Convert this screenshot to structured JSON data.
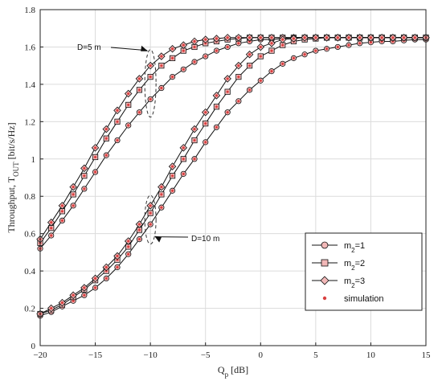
{
  "chart_data": {
    "type": "line",
    "xlabel_main": "Q",
    "xlabel_sub": "p",
    "xlabel_tail": " [dB]",
    "ylabel_main": "Throughput, T",
    "ylabel_sub": "OUT",
    "ylabel_tail": " [bit/s/Hz]",
    "xlim": [
      -20,
      15
    ],
    "ylim": [
      0,
      1.8
    ],
    "xticks": [
      -20,
      -15,
      -10,
      -5,
      0,
      5,
      10,
      15
    ],
    "yticks": [
      0,
      0.2,
      0.4,
      0.6,
      0.8,
      1,
      1.2,
      1.4,
      1.6,
      1.8
    ],
    "grid": true,
    "legend_position": "bottom-right",
    "annotations": [
      {
        "text": "D=5 m"
      },
      {
        "text": "D=10 m"
      }
    ],
    "legend": [
      {
        "label_main": "m",
        "label_sub": "2",
        "label_tail": "=1",
        "marker": "circle"
      },
      {
        "label_main": "m",
        "label_sub": "2",
        "label_tail": "=2",
        "marker": "square"
      },
      {
        "label_main": "m",
        "label_sub": "2",
        "label_tail": "=3",
        "marker": "diamond"
      },
      {
        "label_main": "simulation",
        "label_sub": "",
        "label_tail": "",
        "marker": "dot"
      }
    ],
    "x": [
      -20,
      -19,
      -18,
      -17,
      -16,
      -15,
      -14,
      -13,
      -12,
      -11,
      -10,
      -9,
      -8,
      -7,
      -6,
      -5,
      -4,
      -3,
      -2,
      -1,
      0,
      1,
      2,
      3,
      4,
      5,
      6,
      7,
      8,
      9,
      10,
      11,
      12,
      13,
      14,
      15
    ],
    "series": [
      {
        "group": "D=5 m",
        "marker": "circle",
        "values": [
          0.52,
          0.59,
          0.67,
          0.75,
          0.84,
          0.93,
          1.02,
          1.1,
          1.18,
          1.25,
          1.32,
          1.38,
          1.44,
          1.48,
          1.52,
          1.55,
          1.58,
          1.6,
          1.62,
          1.63,
          1.64,
          1.64,
          1.645,
          1.65,
          1.65,
          1.65,
          1.65,
          1.65,
          1.65,
          1.65,
          1.65,
          1.65,
          1.65,
          1.65,
          1.65,
          1.65
        ]
      },
      {
        "group": "D=5 m",
        "marker": "square",
        "values": [
          0.55,
          0.63,
          0.72,
          0.81,
          0.91,
          1.01,
          1.11,
          1.2,
          1.29,
          1.37,
          1.44,
          1.5,
          1.54,
          1.58,
          1.6,
          1.62,
          1.63,
          1.64,
          1.645,
          1.65,
          1.65,
          1.65,
          1.65,
          1.65,
          1.65,
          1.65,
          1.65,
          1.65,
          1.65,
          1.65,
          1.65,
          1.65,
          1.65,
          1.65,
          1.65,
          1.65
        ]
      },
      {
        "group": "D=5 m",
        "marker": "diamond",
        "values": [
          0.57,
          0.66,
          0.75,
          0.85,
          0.95,
          1.06,
          1.16,
          1.26,
          1.35,
          1.43,
          1.5,
          1.55,
          1.59,
          1.61,
          1.63,
          1.64,
          1.645,
          1.65,
          1.65,
          1.65,
          1.65,
          1.65,
          1.65,
          1.65,
          1.65,
          1.65,
          1.65,
          1.65,
          1.65,
          1.65,
          1.65,
          1.65,
          1.65,
          1.65,
          1.65,
          1.65
        ]
      },
      {
        "group": "D=10 m",
        "marker": "circle",
        "values": [
          0.16,
          0.18,
          0.21,
          0.24,
          0.27,
          0.31,
          0.36,
          0.42,
          0.49,
          0.57,
          0.65,
          0.74,
          0.83,
          0.92,
          1.0,
          1.09,
          1.17,
          1.25,
          1.31,
          1.37,
          1.42,
          1.47,
          1.51,
          1.54,
          1.56,
          1.58,
          1.59,
          1.6,
          1.61,
          1.62,
          1.625,
          1.63,
          1.63,
          1.635,
          1.64,
          1.64
        ]
      },
      {
        "group": "D=10 m",
        "marker": "square",
        "values": [
          0.17,
          0.19,
          0.22,
          0.26,
          0.3,
          0.35,
          0.4,
          0.46,
          0.53,
          0.62,
          0.71,
          0.81,
          0.91,
          1.0,
          1.1,
          1.19,
          1.28,
          1.36,
          1.44,
          1.5,
          1.55,
          1.58,
          1.61,
          1.63,
          1.64,
          1.645,
          1.65,
          1.65,
          1.65,
          1.65,
          1.65,
          1.65,
          1.65,
          1.65,
          1.65,
          1.65
        ]
      },
      {
        "group": "D=10 m",
        "marker": "diamond",
        "values": [
          0.17,
          0.2,
          0.23,
          0.27,
          0.31,
          0.36,
          0.42,
          0.48,
          0.56,
          0.65,
          0.75,
          0.85,
          0.96,
          1.06,
          1.16,
          1.25,
          1.34,
          1.43,
          1.5,
          1.56,
          1.6,
          1.62,
          1.64,
          1.645,
          1.65,
          1.65,
          1.65,
          1.65,
          1.65,
          1.65,
          1.65,
          1.65,
          1.65,
          1.65,
          1.65,
          1.65
        ]
      }
    ],
    "colors": {
      "line": "#111111",
      "marker_fill": "#f2b8b8",
      "simulation_dot": "#d94040",
      "grid": "#dcdcdc",
      "annotation_ellipse": "#333333"
    }
  }
}
